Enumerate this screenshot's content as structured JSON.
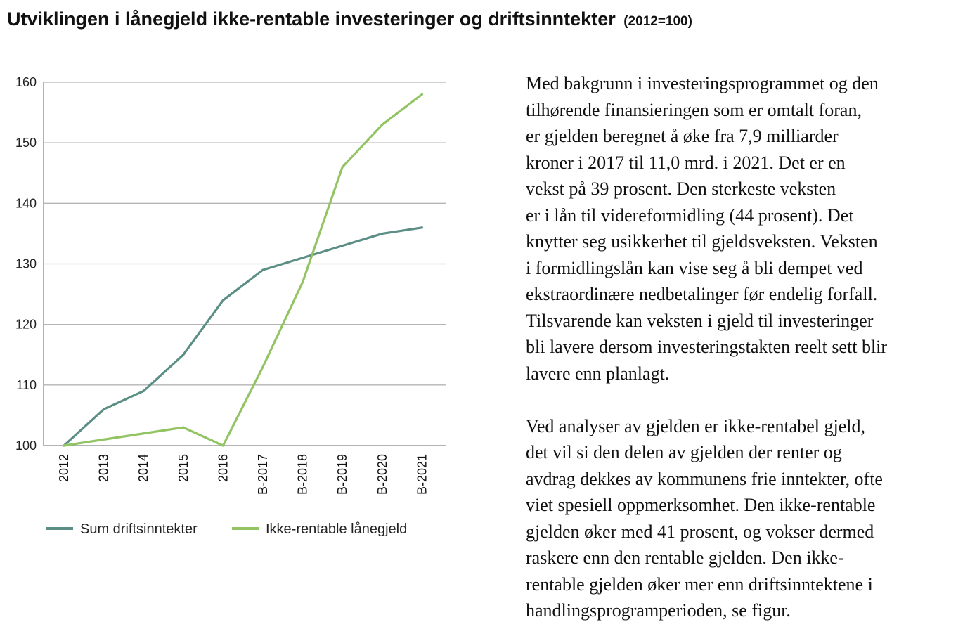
{
  "title": "Utviklingen i lånegjeld ikke-rentable investeringer og driftsinntekter",
  "subtitle": "(2012=100)",
  "colors": {
    "sum": "#5b8e84",
    "ikke": "#93c464",
    "grid": "#b5b5b5",
    "axis": "#888888"
  },
  "chart_data": {
    "type": "line",
    "title": "Utviklingen i lånegjeld ikke-rentable investeringer og driftsinntekter (2012=100)",
    "categories": [
      "2012",
      "2013",
      "2014",
      "2015",
      "2016",
      "B-2017",
      "B-2018",
      "B-2019",
      "B-2020",
      "B-2021"
    ],
    "series": [
      {
        "name": "Sum driftsinntekter",
        "values": [
          100,
          106,
          109,
          115,
          124,
          129,
          131,
          133,
          135,
          136
        ]
      },
      {
        "name": "Ikke-rentable lånegjeld",
        "values": [
          100,
          101,
          102,
          103,
          100,
          113,
          127,
          146,
          153,
          158
        ]
      }
    ],
    "ylim": [
      100,
      160
    ],
    "yticks": [
      100,
      110,
      120,
      130,
      140,
      150,
      160
    ],
    "grid": true,
    "legend": "bottom"
  },
  "paragraphs": [
    {
      "lines": [
        "Med bakgrunn i investeringsprogrammet og den",
        "tilhørende finansieringen som er omtalt foran,",
        "er gjelden beregnet å øke fra 7,9 milliarder",
        "kroner i 2017 til 11,0 mrd. i 2021. Det er en",
        "vekst på 39 prosent. Den sterkeste veksten",
        "er i lån til videreformidling (44 prosent). Det",
        "knytter seg usikkerhet til gjeldsveksten. Veksten",
        "i formidlingslån kan vise seg å bli dempet ved",
        "ekstraordinære nedbetalinger før endelig forfall.",
        "Tilsvarende kan veksten i gjeld til investeringer",
        "bli lavere dersom investeringstakten reelt sett blir",
        "lavere enn planlagt."
      ]
    },
    {
      "lines": [
        "Ved analyser av gjelden er ikke-rentabel gjeld,",
        "det vil si den delen av gjelden der renter og",
        "avdrag dekkes av kommunens frie inntekter, ofte",
        "viet spesiell oppmerksomhet. Den ikke-rentable",
        "gjelden øker med 41 prosent, og vokser dermed",
        "raskere enn den rentable gjelden. Den ikke-",
        "rentable gjelden øker mer enn driftsinntektene i",
        "handlingsprogramperioden, se figur."
      ]
    }
  ]
}
